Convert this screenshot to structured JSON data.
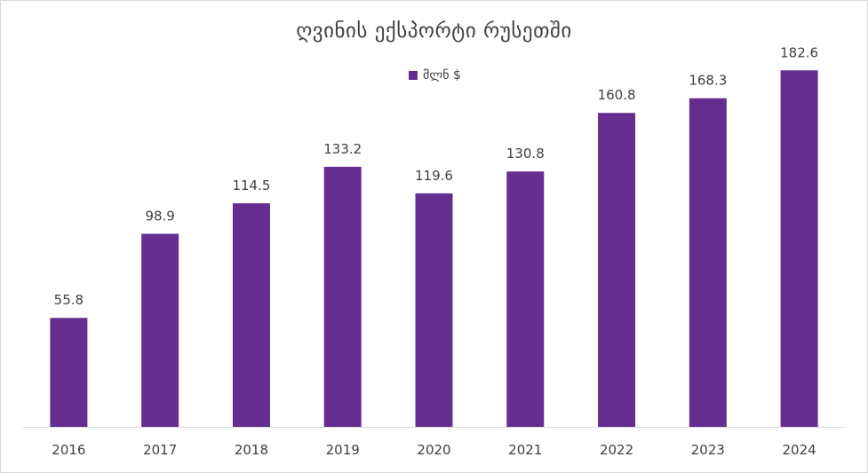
{
  "chart_data": {
    "type": "bar",
    "title": "ღვინის ექსპორტი რუსეთში",
    "categories": [
      "2016",
      "2017",
      "2018",
      "2019",
      "2020",
      "2021",
      "2022",
      "2023",
      "2024"
    ],
    "series": [
      {
        "name": "მლნ $",
        "values": [
          55.8,
          98.9,
          114.5,
          133.2,
          119.6,
          130.8,
          160.8,
          168.3,
          182.6
        ]
      }
    ],
    "xlabel": "",
    "ylabel": "",
    "ylim": [
      0,
      200
    ],
    "grid": false,
    "legend_position": "top",
    "colors": {
      "bar": "#662d91",
      "axis": "#d9d9d9",
      "text": "#404040"
    }
  }
}
